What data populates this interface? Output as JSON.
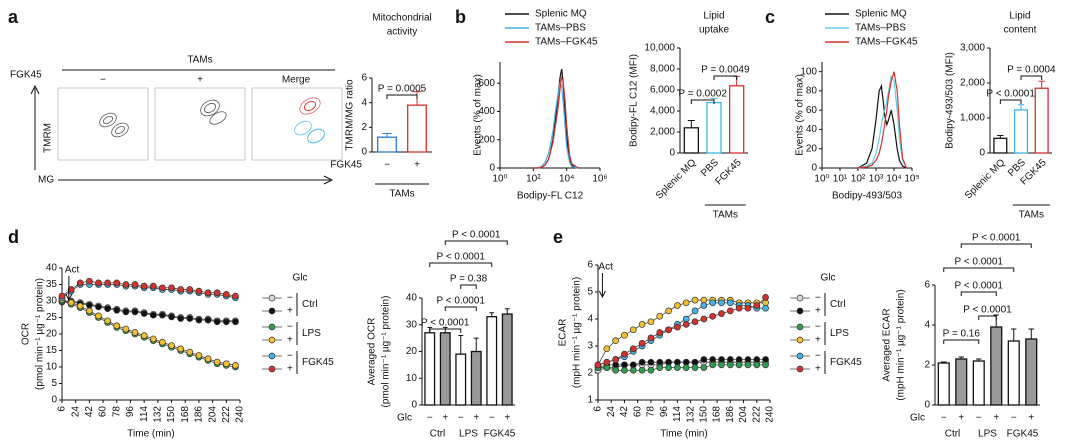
{
  "panel_labels": [
    "a",
    "b",
    "c",
    "d",
    "e"
  ],
  "flow": {
    "title": "TAMs",
    "columns": [
      "−",
      "+",
      "Merge"
    ],
    "y_arrow_label": "FGK45",
    "y_label": "TMRM",
    "x_label": "MG"
  },
  "chart_data": [
    {
      "type": "bar",
      "title": [
        "Mitochondrial",
        "activity"
      ],
      "ylabel": [
        "TMRM/MG ratio"
      ],
      "categories": [
        "−",
        "+"
      ],
      "values": [
        1.2,
        3.8
      ],
      "errors": [
        0.3,
        1.1
      ],
      "colors": [
        "#2e7bc4",
        "#d6312b"
      ],
      "fills": [
        "#ffffff",
        "#ffffff"
      ],
      "ylim": [
        0,
        6
      ],
      "yticks": [
        0,
        2,
        4,
        6
      ],
      "x_label": "FGK45",
      "group_label": "TAMs",
      "pvalues": [
        "P = 0.0005"
      ]
    },
    {
      "type": "line",
      "xscale": "log",
      "ylabel": [
        "Events (% of max)"
      ],
      "xlabel": "Bodipy-FL C12",
      "x": [
        100,
        200,
        300,
        500,
        800,
        1000,
        1500,
        2000,
        3000,
        4000,
        5000,
        6000,
        8000,
        10000,
        15000,
        20000,
        50000
      ],
      "xlim": [
        1,
        1000000
      ],
      "xticks": [
        {
          "value": 1,
          "label": "10⁰"
        },
        {
          "value": 100,
          "label": "10²"
        },
        {
          "value": 10000,
          "label": "10⁴"
        },
        {
          "value": 1000000,
          "label": "10⁶"
        }
      ],
      "ylim": [
        0,
        750
      ],
      "yticks": [
        0,
        200,
        400,
        600
      ],
      "series": [
        {
          "name": "Splenic MQ",
          "color": "#111111",
          "values": [
            0,
            0,
            5,
            20,
            60,
            100,
            200,
            320,
            500,
            640,
            700,
            620,
            400,
            220,
            60,
            20,
            0
          ]
        },
        {
          "name": "TAMs–PBS",
          "color": "#3fb4e6",
          "values": [
            0,
            2,
            10,
            40,
            100,
            150,
            260,
            380,
            520,
            600,
            580,
            480,
            300,
            150,
            40,
            10,
            0
          ]
        },
        {
          "name": "TAMs–FGK45",
          "color": "#d6312b",
          "values": [
            0,
            1,
            5,
            20,
            60,
            100,
            180,
            280,
            420,
            560,
            640,
            620,
            480,
            300,
            90,
            30,
            0
          ]
        }
      ]
    },
    {
      "type": "bar",
      "title": [
        "Lipid",
        "uptake"
      ],
      "ylabel": [
        "Bodipy-FL C12 (MFI)"
      ],
      "categories": [
        "Splenic MQ",
        "PBS",
        "FGK45"
      ],
      "values": [
        2400,
        4800,
        6400
      ],
      "errors": [
        700,
        400,
        900
      ],
      "colors": [
        "#111111",
        "#3fb4e6",
        "#d6312b"
      ],
      "fills": [
        "#ffffff",
        "#ffffff",
        "#ffffff"
      ],
      "ylim": [
        0,
        10000
      ],
      "yticks": [
        0,
        {
          "value": 2000,
          "label": "2,000"
        },
        {
          "value": 4000,
          "label": "4,000"
        },
        {
          "value": 6000,
          "label": "6,000"
        },
        {
          "value": 8000,
          "label": "8,000"
        },
        {
          "value": 10000,
          "label": "10,000"
        }
      ],
      "group_label": "TAMs",
      "pvalues": [
        "P = 0.0002",
        "P = 0.0049"
      ]
    },
    {
      "type": "line",
      "xscale": "log",
      "ylabel": [
        "Events (% of max)"
      ],
      "xlabel": "Bodipy-493/503",
      "x": [
        100,
        300,
        600,
        1000,
        1500,
        2000,
        2500,
        3000,
        4000,
        5000,
        7000,
        10000,
        15000,
        20000,
        30000,
        50000
      ],
      "xlim": [
        1,
        100000
      ],
      "xticks": [
        {
          "value": 1,
          "label": "10⁰"
        },
        {
          "value": 10,
          "label": "10¹"
        },
        {
          "value": 100,
          "label": "10²"
        },
        {
          "value": 1000,
          "label": "10³"
        },
        {
          "value": 10000,
          "label": "10⁴"
        },
        {
          "value": 100000,
          "label": "10⁵"
        }
      ],
      "ylim": [
        0,
        110
      ],
      "yticks": [
        0,
        20,
        40,
        60,
        80,
        100
      ],
      "series": [
        {
          "name": "Splenic MQ",
          "color": "#111111",
          "values": [
            0,
            5,
            20,
            50,
            80,
            85,
            70,
            55,
            45,
            50,
            60,
            45,
            20,
            8,
            2,
            0
          ]
        },
        {
          "name": "TAMs–PBS",
          "color": "#5fd0e6",
          "values": [
            0,
            2,
            5,
            15,
            30,
            45,
            55,
            60,
            70,
            80,
            95,
            90,
            60,
            30,
            8,
            0
          ]
        },
        {
          "name": "TAMs–FGK45",
          "color": "#d6312b",
          "values": [
            0,
            1,
            3,
            8,
            15,
            25,
            35,
            45,
            60,
            75,
            90,
            100,
            80,
            45,
            10,
            0
          ]
        }
      ]
    },
    {
      "type": "bar",
      "title": [
        "Lipid",
        "content"
      ],
      "ylabel": [
        "Bodipy-493/503 (MFI)"
      ],
      "categories": [
        "Splenic MQ",
        "PBS",
        "FGK45"
      ],
      "values": [
        420,
        1230,
        1850
      ],
      "errors": [
        80,
        150,
        200
      ],
      "colors": [
        "#111111",
        "#3fb4e6",
        "#d6312b"
      ],
      "fills": [
        "#ffffff",
        "#ffffff",
        "#ffffff"
      ],
      "ylim": [
        0,
        3000
      ],
      "yticks": [
        0,
        {
          "value": 1000,
          "label": "1,000"
        },
        {
          "value": 2000,
          "label": "2,000"
        },
        {
          "value": 3000,
          "label": "3,000"
        }
      ],
      "group_label": "TAMs",
      "pvalues": [
        "P < 0.0001",
        "P = 0.0004"
      ]
    },
    {
      "type": "line",
      "xscale": "linear",
      "markers": true,
      "ylabel": [
        "OCR",
        "(pmol min⁻¹ µg⁻¹ protein)"
      ],
      "xlabel": "Time (min)",
      "annotation": {
        "text": "Act",
        "x": 15
      },
      "legend_title": "Glc",
      "groups": [
        "Ctrl",
        "LPS",
        "FGK45"
      ],
      "x": [
        6,
        18,
        30,
        42,
        54,
        66,
        78,
        90,
        102,
        114,
        126,
        138,
        150,
        162,
        174,
        186,
        198,
        210,
        222,
        234
      ],
      "xlim": [
        6,
        240
      ],
      "xticks": [
        6,
        24,
        42,
        60,
        78,
        96,
        114,
        132,
        150,
        168,
        186,
        204,
        222,
        240
      ],
      "ylim": [
        0,
        40
      ],
      "yticks": [
        0,
        5,
        10,
        15,
        20,
        25,
        30,
        35,
        40
      ],
      "series": [
        {
          "name": "−",
          "color": "#d9d9d9",
          "values": [
            30,
            30,
            29.5,
            29,
            28.5,
            28,
            27.5,
            27,
            27,
            26.5,
            26,
            26,
            25.5,
            25,
            25,
            24.5,
            24.5,
            24,
            24,
            24
          ]
        },
        {
          "name": "+",
          "color": "#111111",
          "values": [
            29.7,
            29.7,
            29.2,
            28.7,
            28.2,
            27.7,
            27.2,
            26.7,
            26.7,
            26.2,
            25.7,
            25.7,
            25.2,
            24.7,
            24.7,
            24.2,
            24.2,
            23.7,
            23.7,
            23.7
          ]
        },
        {
          "name": "−",
          "color": "#2e9e4f",
          "values": [
            30,
            29,
            28,
            26.5,
            25,
            23.5,
            22,
            21,
            20,
            19,
            18,
            17,
            16,
            15,
            14,
            13,
            12,
            11,
            10.5,
            10
          ]
        },
        {
          "name": "+",
          "color": "#f2c12e",
          "values": [
            30.5,
            29.5,
            28.5,
            27,
            25.5,
            24,
            22.5,
            21.5,
            20.5,
            19.5,
            18.5,
            17.5,
            16.5,
            15.5,
            14.5,
            13.5,
            12.5,
            11.5,
            11,
            10.5
          ]
        },
        {
          "name": "−",
          "color": "#3fb4e6",
          "values": [
            31,
            33,
            35,
            35,
            35,
            35,
            35,
            34.5,
            34.5,
            34,
            34,
            33.5,
            33.5,
            33,
            33,
            32.5,
            32,
            32,
            31.5,
            31
          ]
        },
        {
          "name": "+",
          "color": "#d6312b",
          "values": [
            31.5,
            33.5,
            35.5,
            36,
            35.5,
            35.5,
            35.5,
            35,
            35,
            34.5,
            34.5,
            34,
            34,
            33.5,
            33.5,
            33,
            32.5,
            32.5,
            32,
            31.5
          ]
        }
      ]
    },
    {
      "type": "bar",
      "ylabel": [
        "Averaged OCR",
        "(pmol min⁻¹ µg⁻¹ protein)"
      ],
      "categories": [
        "−",
        "+",
        "−",
        "+",
        "−",
        "+"
      ],
      "groups": [
        "Ctrl",
        "LPS",
        "FGK45"
      ],
      "x_label": "Glc",
      "values": [
        27,
        27,
        19,
        20,
        33,
        34
      ],
      "errors": [
        2,
        2,
        7,
        5,
        1.5,
        2
      ],
      "colors": [
        "#111111",
        "#111111",
        "#111111",
        "#111111",
        "#111111",
        "#111111"
      ],
      "fills": [
        "#ffffff",
        "#999999",
        "#ffffff",
        "#999999",
        "#ffffff",
        "#999999"
      ],
      "ylim": [
        0,
        40
      ],
      "yticks": [
        0,
        10,
        20,
        30,
        40
      ],
      "pvalues": [
        "P < 0.0001",
        "P < 0.0001",
        "P = 0.38",
        "P < 0.0001",
        "P < 0.0001"
      ]
    },
    {
      "type": "line",
      "xscale": "linear",
      "markers": true,
      "ylabel": [
        "ECAR",
        "(mpH min⁻¹ µg⁻¹ protein)"
      ],
      "xlabel": "Time (min)",
      "annotation": {
        "text": "Act",
        "x": 12
      },
      "legend_title": "Glc",
      "groups": [
        "Ctrl",
        "LPS",
        "FGK45"
      ],
      "x": [
        6,
        18,
        30,
        42,
        54,
        66,
        78,
        90,
        102,
        114,
        126,
        138,
        150,
        162,
        174,
        186,
        198,
        210,
        222,
        234
      ],
      "xlim": [
        6,
        240
      ],
      "xticks": [
        6,
        24,
        42,
        60,
        78,
        96,
        114,
        132,
        150,
        168,
        186,
        204,
        222,
        240
      ],
      "ylim": [
        1,
        6
      ],
      "yticks": [
        1,
        2,
        3,
        4,
        5,
        6
      ],
      "series": [
        {
          "name": "−",
          "color": "#d9d9d9",
          "values": [
            2.1,
            2.2,
            2.2,
            2.3,
            2.3,
            2.3,
            2.3,
            2.3,
            2.4,
            2.4,
            2.4,
            2.4,
            2.4,
            2.4,
            2.4,
            2.4,
            2.4,
            2.4,
            2.4,
            2.4
          ]
        },
        {
          "name": "+",
          "color": "#111111",
          "values": [
            2.2,
            2.3,
            2.3,
            2.3,
            2.3,
            2.4,
            2.4,
            2.4,
            2.4,
            2.4,
            2.4,
            2.4,
            2.5,
            2.5,
            2.5,
            2.5,
            2.5,
            2.5,
            2.5,
            2.5
          ]
        },
        {
          "name": "−",
          "color": "#2e9e4f",
          "values": [
            2.2,
            2.2,
            2.1,
            2.1,
            2.1,
            2.1,
            2.1,
            2.2,
            2.2,
            2.2,
            2.2,
            2.2,
            2.2,
            2.3,
            2.3,
            2.3,
            2.3,
            2.3,
            2.3,
            2.3
          ]
        },
        {
          "name": "+",
          "color": "#f2c12e",
          "values": [
            2.3,
            2.9,
            3.2,
            3.4,
            3.6,
            3.8,
            3.9,
            4.1,
            4.3,
            4.5,
            4.6,
            4.7,
            4.7,
            4.7,
            4.7,
            4.7,
            4.6,
            4.6,
            4.6,
            4.6
          ]
        },
        {
          "name": "−",
          "color": "#3fb4e6",
          "values": [
            2.3,
            2.4,
            2.5,
            2.6,
            2.8,
            3.0,
            3.2,
            3.4,
            3.6,
            3.8,
            4.0,
            4.3,
            4.5,
            4.6,
            4.6,
            4.6,
            4.5,
            4.5,
            4.4,
            4.4
          ]
        },
        {
          "name": "+",
          "color": "#d6312b",
          "values": [
            2.3,
            2.4,
            2.5,
            2.7,
            2.9,
            3.1,
            3.3,
            3.5,
            3.6,
            3.7,
            3.8,
            3.9,
            4.0,
            4.1,
            4.2,
            4.3,
            4.4,
            4.4,
            4.5,
            4.8
          ]
        }
      ]
    },
    {
      "type": "bar",
      "ylabel": [
        "Averaged ECAR",
        "(mpH min⁻¹ µg⁻¹ protein)"
      ],
      "categories": [
        "−",
        "+",
        "−",
        "+",
        "−",
        "+"
      ],
      "groups": [
        "Ctrl",
        "LPS",
        "FGK45"
      ],
      "x_label": "Glc",
      "values": [
        2.1,
        2.3,
        2.2,
        3.9,
        3.2,
        3.3
      ],
      "errors": [
        0.05,
        0.1,
        0.1,
        0.6,
        0.6,
        0.5
      ],
      "colors": [
        "#111111",
        "#111111",
        "#111111",
        "#111111",
        "#111111",
        "#111111"
      ],
      "fills": [
        "#ffffff",
        "#999999",
        "#ffffff",
        "#999999",
        "#ffffff",
        "#999999"
      ],
      "ylim": [
        0,
        6
      ],
      "yticks": [
        0,
        2,
        4,
        6
      ],
      "pvalues": [
        "P = 0.16",
        "P < 0.0001",
        "P < 0.0001",
        "P < 0.0001",
        "P < 0.0001"
      ]
    }
  ]
}
